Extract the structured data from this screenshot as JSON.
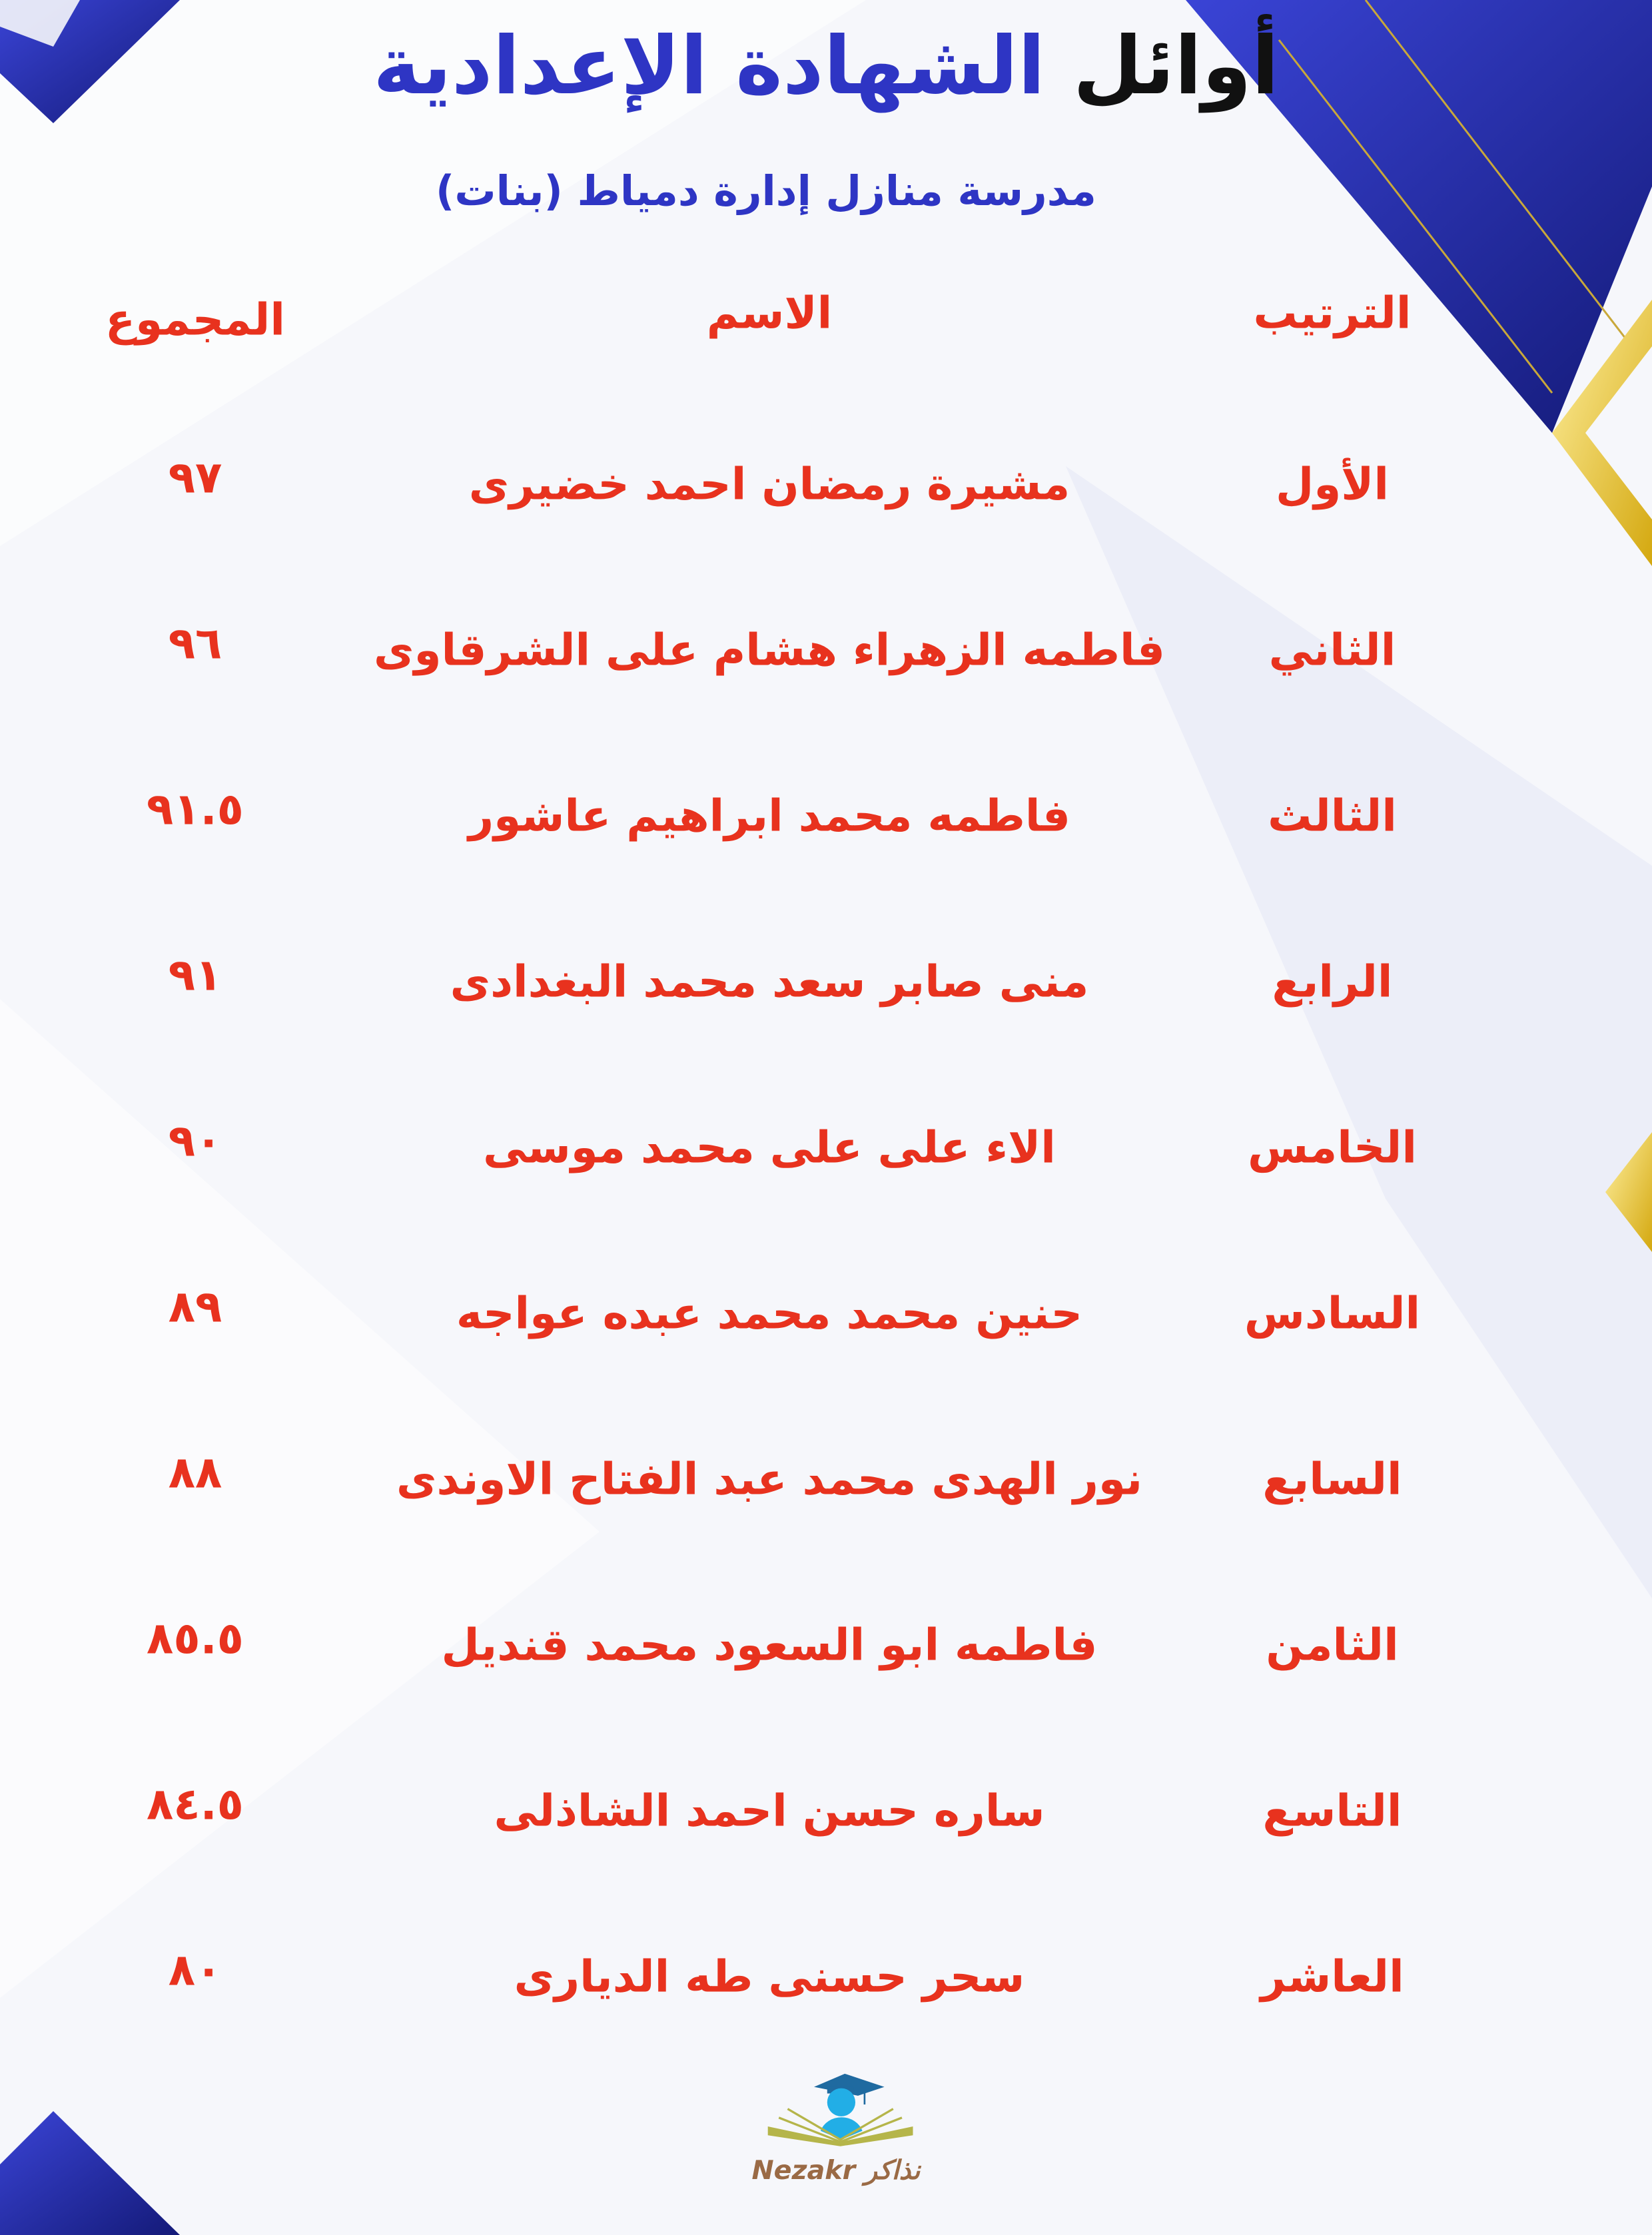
{
  "title": {
    "part1": "أوائل",
    "part2": "الشهادة الإعدادية"
  },
  "subtitle": "مدرسة منازل إدارة دمياط (بنات)",
  "table": {
    "headers": {
      "rank": "الترتيب",
      "name": "الاسم",
      "total": "المجموع"
    },
    "rows": [
      {
        "rank": "الأول",
        "name": "مشيرة رمضان احمد خضيرى",
        "total": "٩٧"
      },
      {
        "rank": "الثاني",
        "name": "فاطمه الزهراء هشام على الشرقاوى",
        "total": "٩٦"
      },
      {
        "rank": "الثالث",
        "name": "فاطمه محمد ابراهيم عاشور",
        "total": "٩١.٥"
      },
      {
        "rank": "الرابع",
        "name": "منى صابر سعد محمد البغدادى",
        "total": "٩١"
      },
      {
        "rank": "الخامس",
        "name": "الاء على على محمد موسى",
        "total": "٩٠"
      },
      {
        "rank": "السادس",
        "name": "حنين محمد محمد عبده عواجه",
        "total": "٨٩"
      },
      {
        "rank": "السابع",
        "name": "نور الهدى محمد عبد الفتاح الاوندى",
        "total": "٨٨"
      },
      {
        "rank": "الثامن",
        "name": "فاطمه ابو السعود محمد قنديل",
        "total": "٨٥.٥"
      },
      {
        "rank": "التاسع",
        "name": "ساره حسن احمد الشاذلى",
        "total": "٨٤.٥"
      },
      {
        "rank": "العاشر",
        "name": "سحر حسنى طه الديارى",
        "total": "٨٠"
      }
    ]
  },
  "logo": {
    "text": "Nezakr نذاكر"
  },
  "colors": {
    "accent_red": "#e8321e",
    "title_blue": "#2e35c4",
    "gold": "#e8c21a",
    "navy": "#1a1f8a"
  }
}
